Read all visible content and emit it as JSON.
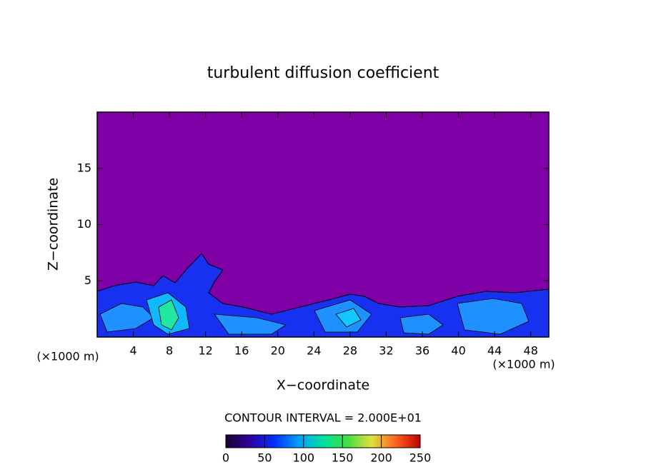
{
  "chart_data": {
    "type": "contour",
    "title": "turbulent diffusion coefficient",
    "xlabel": "X−coordinate",
    "ylabel": "Z−coordinate",
    "x_unit_left": "(×1000 m)",
    "x_unit_right": "(×1000 m)",
    "annotation": "CONTOUR INTERVAL = 2.000E+01",
    "xlim": [
      0,
      50
    ],
    "xticks": [
      4,
      8,
      12,
      16,
      20,
      24,
      28,
      32,
      36,
      40,
      44,
      48
    ],
    "ylim": [
      0,
      20
    ],
    "yticks": [
      5,
      10,
      15
    ],
    "background_color": "#8000a8",
    "colorbar": {
      "lim": [
        0,
        250
      ],
      "ticks": [
        0,
        50,
        100,
        150,
        200,
        250
      ],
      "colormap": [
        "#1a0030",
        "#3000a0",
        "#0030ff",
        "#00a0ff",
        "#00e0a0",
        "#40e040",
        "#e0e040",
        "#ff6020",
        "#c00000"
      ]
    }
  }
}
